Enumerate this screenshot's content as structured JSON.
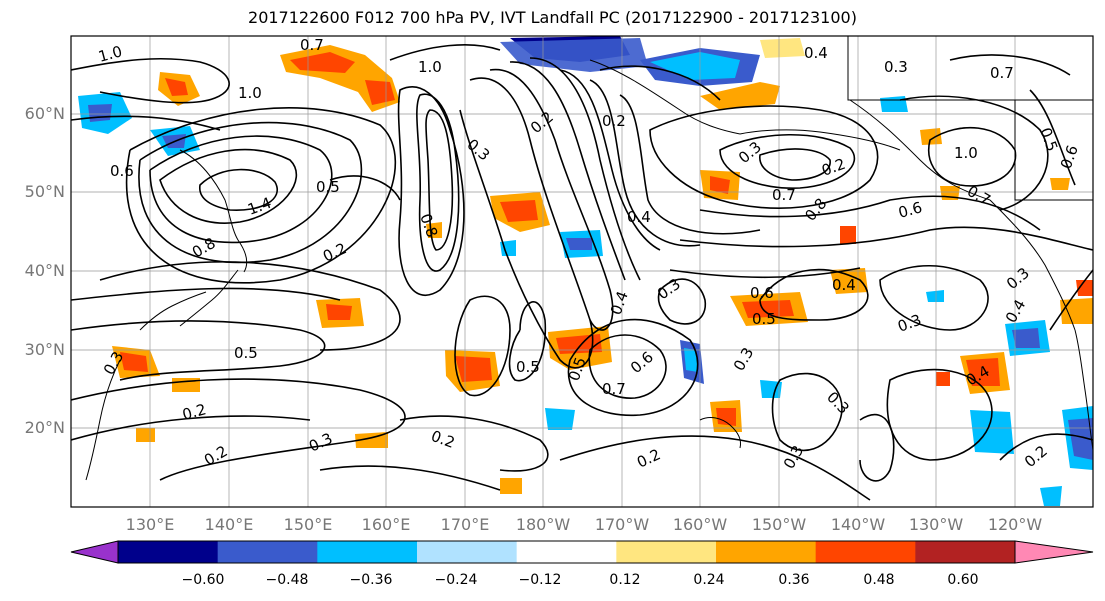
{
  "title": "2017122600 F012 700 hPa PV, IVT Landfall PC (2017122900 - 2017123100)",
  "lat_labels": [
    "60°N",
    "50°N",
    "40°N",
    "30°N",
    "20°N"
  ],
  "lon_labels": [
    "130°E",
    "140°E",
    "150°E",
    "160°E",
    "170°E",
    "180°W",
    "170°W",
    "160°W",
    "150°W",
    "140°W",
    "130°W",
    "120°W"
  ],
  "colorbar": {
    "ticks": [
      "−0.60",
      "−0.48",
      "−0.36",
      "−0.24",
      "−0.12",
      "0.12",
      "0.24",
      "0.36",
      "0.48",
      "0.60"
    ],
    "colors": [
      "#9932cc",
      "#00008b",
      "#3a5bcc",
      "#00bfff",
      "#b0e2ff",
      "#ffffff",
      "#ffe680",
      "#ffa500",
      "#ff4500",
      "#b22222",
      "#ff88b4"
    ]
  },
  "contour_labels": [
    "1.0",
    "0.7",
    "1.0",
    "1.0",
    "0.6",
    "1.4",
    "0.8",
    "0.5",
    "0.2",
    "0.8",
    "0.3",
    "0.2",
    "0.2",
    "0.4",
    "0.3",
    "0.5",
    "0.2",
    "0.3",
    "0.2",
    "0.2",
    "0.3",
    "0.5",
    "0.6",
    "0.5",
    "0.3",
    "0.5",
    "0.4",
    "0.3",
    "0.6",
    "0.7",
    "0.8",
    "0.2",
    "0.3",
    "0.7",
    "0.4",
    "0.3",
    "0.7",
    "0.5",
    "0.6",
    "1.0",
    "0.7",
    "0.3",
    "0.4",
    "0.3",
    "0.3",
    "0.4",
    "0.2",
    "0.6",
    "0.2",
    "0.4"
  ],
  "colors": {
    "contour": "#000000",
    "gridline": "#999999",
    "coastline": "#000000",
    "tick_label": "#777777"
  }
}
